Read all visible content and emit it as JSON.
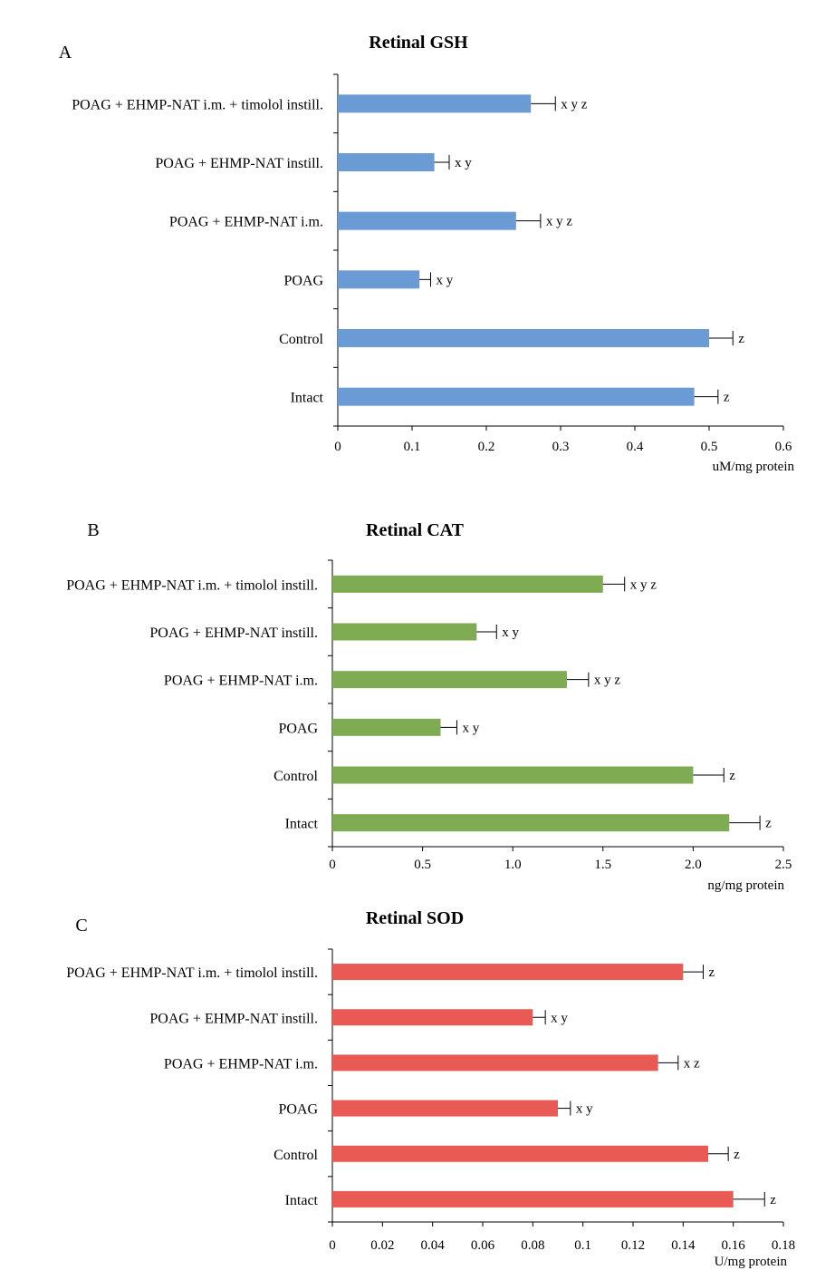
{
  "chart_data": [
    {
      "type": "bar",
      "orientation": "horizontal",
      "panel": "A",
      "title": "Retinal GSH",
      "xlabel": "uM/mg protein",
      "xlim": [
        0,
        0.6
      ],
      "ticks": [
        0,
        0.1,
        0.2,
        0.3,
        0.4,
        0.5,
        0.6
      ],
      "tick_labels": [
        "0",
        "0.1",
        "0.2",
        "0.3",
        "0.4",
        "0.5",
        "0.6"
      ],
      "color": "#6a9bd4",
      "categories": [
        "Intact",
        "Control",
        "POAG",
        "POAG + EHMP-NAT i.m.",
        "POAG + EHMP-NAT instill.",
        "POAG + EHMP-NAT i.m. + timolol instill."
      ],
      "values": [
        0.48,
        0.5,
        0.11,
        0.24,
        0.13,
        0.26
      ],
      "errors": [
        0.032,
        0.032,
        0.015,
        0.033,
        0.02,
        0.033
      ],
      "significance": [
        "z",
        "z",
        "x y",
        "x y z",
        "x y",
        "x y z"
      ]
    },
    {
      "type": "bar",
      "orientation": "horizontal",
      "panel": "B",
      "title": "Retinal CAT",
      "xlabel": "ng/mg protein",
      "xlim": [
        0,
        2.5
      ],
      "ticks": [
        0,
        0.5,
        1.0,
        1.5,
        2.0,
        2.5
      ],
      "tick_labels": [
        "0",
        "0.5",
        "1.0",
        "1.5",
        "2.0",
        "2.5"
      ],
      "color": "#7fab52",
      "categories": [
        "Intact",
        "Control",
        "POAG",
        "POAG + EHMP-NAT i.m.",
        "POAG + EHMP-NAT instill.",
        "POAG + EHMP-NAT i.m. + timolol instill."
      ],
      "values": [
        2.2,
        2.0,
        0.6,
        1.3,
        0.8,
        1.5
      ],
      "errors": [
        0.17,
        0.17,
        0.09,
        0.12,
        0.11,
        0.12
      ],
      "significance": [
        "z",
        "z",
        "x y",
        "x y z",
        "x y",
        "x y z"
      ]
    },
    {
      "type": "bar",
      "orientation": "horizontal",
      "panel": "C",
      "title": "Retinal SOD",
      "xlabel": "U/mg protein",
      "xlim": [
        0,
        0.18
      ],
      "ticks": [
        0,
        0.02,
        0.04,
        0.06,
        0.08,
        0.1,
        0.12,
        0.14,
        0.16,
        0.18
      ],
      "tick_labels": [
        "0",
        "0.02",
        "0.04",
        "0.06",
        "0.08",
        "0.1",
        "0.12",
        "0.14",
        "0.16",
        "0.18"
      ],
      "color": "#e95a55",
      "categories": [
        "Intact",
        "Control",
        "POAG",
        "POAG + EHMP-NAT i.m.",
        "POAG + EHMP-NAT instill.",
        "POAG + EHMP-NAT i.m. + timolol instill."
      ],
      "values": [
        0.16,
        0.15,
        0.09,
        0.13,
        0.08,
        0.14
      ],
      "errors": [
        0.0125,
        0.008,
        0.005,
        0.008,
        0.005,
        0.008
      ],
      "significance": [
        "z",
        "z",
        "x y",
        "x z",
        "x y",
        "z"
      ]
    }
  ]
}
